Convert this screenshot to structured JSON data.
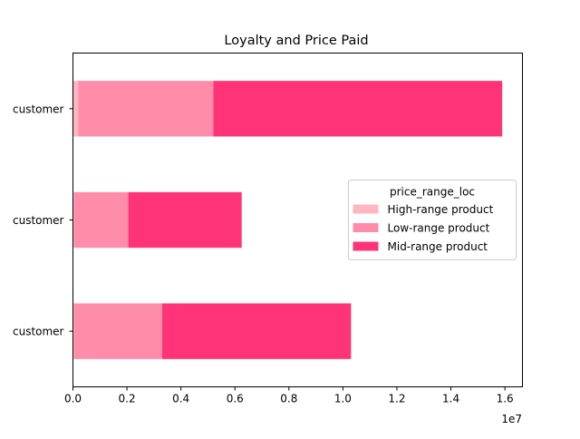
{
  "chart_data": {
    "type": "bar",
    "orientation": "horizontal",
    "stacked": true,
    "title": "Loyalty and Price Paid",
    "xlabel": "",
    "ylabel": "",
    "x_offset_label": "1e7",
    "xlim": [
      0,
      1.665
    ],
    "x_scale": 10000000,
    "x_ticks": [
      "0.0",
      "0.2",
      "0.4",
      "0.6",
      "0.8",
      "1.0",
      "1.2",
      "1.4",
      "1.6"
    ],
    "categories": [
      "customer",
      "customer",
      "customer"
    ],
    "series": [
      {
        "name": "High-range product",
        "color": "#ffb6c1",
        "values": [
          0.02,
          0.005,
          0.005
        ]
      },
      {
        "name": "Low-range product",
        "color": "#ff8ca8",
        "values": [
          0.5,
          0.2,
          0.325
        ]
      },
      {
        "name": "Mid-range product",
        "color": "#ff3377",
        "values": [
          1.07,
          0.42,
          0.7
        ]
      }
    ],
    "legend": {
      "title": "price_range_loc",
      "placement": "center-right"
    },
    "grid": false
  }
}
